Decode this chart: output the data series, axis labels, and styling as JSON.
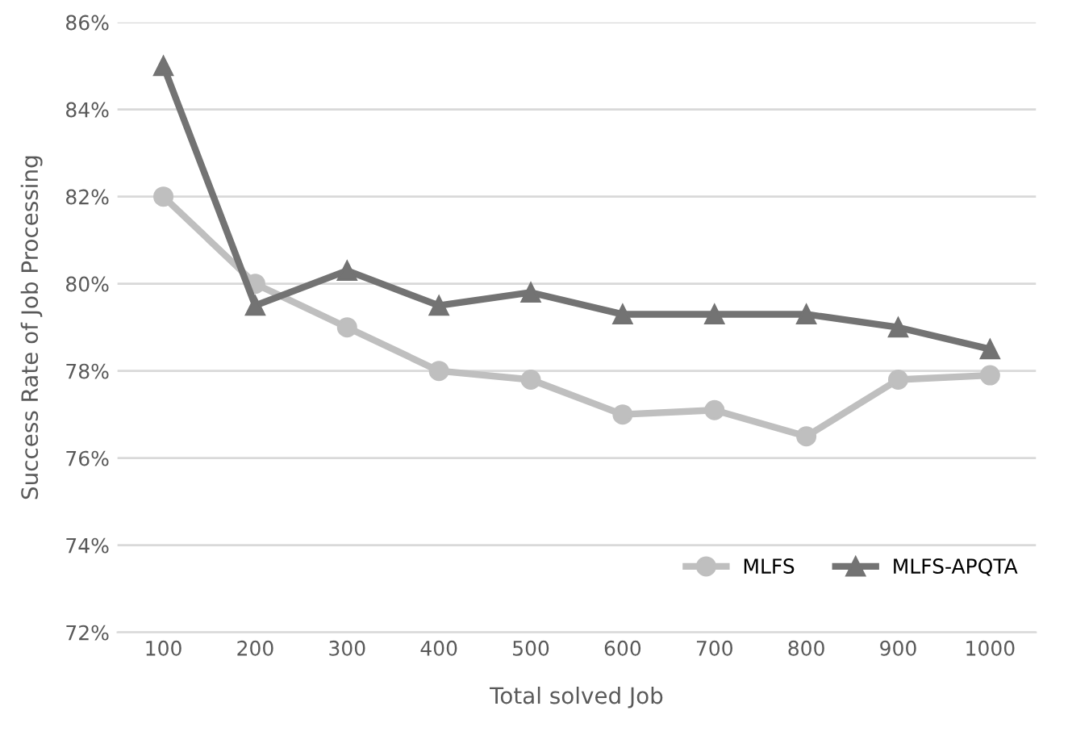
{
  "chart_data": {
    "type": "line",
    "xlabel": "Total solved Job",
    "ylabel": "Success Rate of Job Processing",
    "categories": [
      "100",
      "200",
      "300",
      "400",
      "500",
      "600",
      "700",
      "800",
      "900",
      "1000"
    ],
    "series": [
      {
        "name": "MLFS",
        "color": "#bfbfbf",
        "marker": "circle",
        "values": [
          82.0,
          80.0,
          79.0,
          78.0,
          77.8,
          77.0,
          77.1,
          76.5,
          77.8,
          77.9
        ]
      },
      {
        "name": "MLFS-APQTA",
        "color": "#737373",
        "marker": "triangle",
        "values": [
          85.0,
          79.5,
          80.3,
          79.5,
          79.8,
          79.3,
          79.3,
          79.3,
          79.0,
          78.5
        ]
      }
    ],
    "ylim": [
      72,
      86
    ],
    "yticks": [
      {
        "value": 72,
        "label": "72%"
      },
      {
        "value": 74,
        "label": "74%"
      },
      {
        "value": 76,
        "label": "76%"
      },
      {
        "value": 78,
        "label": "78%"
      },
      {
        "value": 80,
        "label": "80%"
      },
      {
        "value": 82,
        "label": "82%"
      },
      {
        "value": 84,
        "label": "84%"
      },
      {
        "value": 86,
        "label": "86%"
      }
    ],
    "grid": "y",
    "legend": "bottom right"
  }
}
